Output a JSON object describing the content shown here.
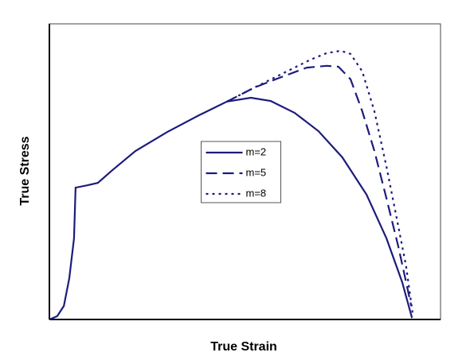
{
  "chart_data": {
    "type": "line",
    "xlabel": "True Strain",
    "ylabel": "True Stress",
    "xlim": [
      0,
      1
    ],
    "ylim": [
      0,
      1
    ],
    "grid": false,
    "legend": "center",
    "series": [
      {
        "name": "m=2",
        "color": "#1c1c7c",
        "dash": "solid",
        "x": [
          0,
          0.02,
          0.037,
          0.051,
          0.063,
          0.067,
          0.098,
          0.124,
          0.159,
          0.22,
          0.301,
          0.383,
          0.454,
          0.515,
          0.566,
          0.627,
          0.688,
          0.749,
          0.811,
          0.862,
          0.902,
          0.927
        ],
        "values": [
          0,
          0.011,
          0.046,
          0.14,
          0.274,
          0.446,
          0.454,
          0.462,
          0.503,
          0.57,
          0.634,
          0.691,
          0.737,
          0.75,
          0.739,
          0.699,
          0.637,
          0.548,
          0.422,
          0.274,
          0.126,
          0.005
        ]
      },
      {
        "name": "m=5",
        "color": "#1c1c7c",
        "dash": "dashed",
        "x": [
          0.454,
          0.525,
          0.587,
          0.658,
          0.709,
          0.739,
          0.77,
          0.8,
          0.831,
          0.862,
          0.892,
          0.912,
          0.925
        ],
        "values": [
          0.737,
          0.785,
          0.817,
          0.852,
          0.858,
          0.855,
          0.812,
          0.704,
          0.57,
          0.409,
          0.247,
          0.126,
          0.046
        ]
      },
      {
        "name": "m=8",
        "color": "#1c1c7c",
        "dash": "dotted",
        "x": [
          0.454,
          0.525,
          0.607,
          0.668,
          0.709,
          0.745,
          0.77,
          0.8,
          0.831,
          0.862,
          0.892,
          0.912,
          0.929
        ],
        "values": [
          0.737,
          0.785,
          0.839,
          0.879,
          0.901,
          0.909,
          0.898,
          0.839,
          0.704,
          0.516,
          0.315,
          0.18,
          0.019
        ]
      }
    ]
  }
}
